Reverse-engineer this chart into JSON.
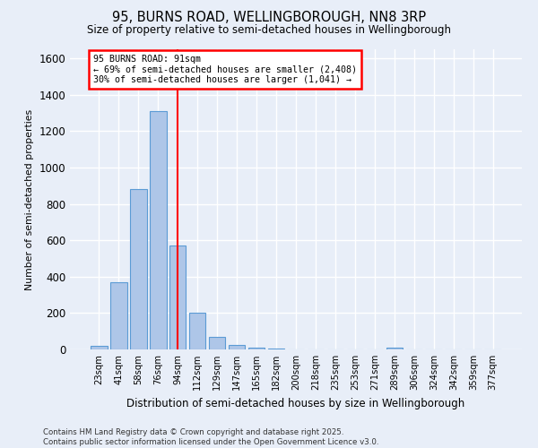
{
  "title": "95, BURNS ROAD, WELLINGBOROUGH, NN8 3RP",
  "subtitle": "Size of property relative to semi-detached houses in Wellingborough",
  "xlabel": "Distribution of semi-detached houses by size in Wellingborough",
  "ylabel": "Number of semi-detached properties",
  "footnote1": "Contains HM Land Registry data © Crown copyright and database right 2025.",
  "footnote2": "Contains public sector information licensed under the Open Government Licence v3.0.",
  "categories": [
    "23sqm",
    "41sqm",
    "58sqm",
    "76sqm",
    "94sqm",
    "112sqm",
    "129sqm",
    "147sqm",
    "165sqm",
    "182sqm",
    "200sqm",
    "218sqm",
    "235sqm",
    "253sqm",
    "271sqm",
    "289sqm",
    "306sqm",
    "324sqm",
    "342sqm",
    "359sqm",
    "377sqm"
  ],
  "values": [
    20,
    370,
    880,
    1310,
    570,
    200,
    70,
    25,
    8,
    3,
    2,
    1,
    1,
    0,
    0,
    10,
    0,
    0,
    0,
    0,
    0
  ],
  "bar_color": "#aec6e8",
  "bar_edge_color": "#5b9bd5",
  "red_line_x": 4,
  "annotation_title": "95 BURNS ROAD: 91sqm",
  "annotation_line1": "← 69% of semi-detached houses are smaller (2,408)",
  "annotation_line2": "30% of semi-detached houses are larger (1,041) →",
  "annotation_box_color": "white",
  "annotation_box_edge_color": "red",
  "ylim": [
    0,
    1650
  ],
  "yticks": [
    0,
    200,
    400,
    600,
    800,
    1000,
    1200,
    1400,
    1600
  ],
  "background_color": "#e8eef8"
}
